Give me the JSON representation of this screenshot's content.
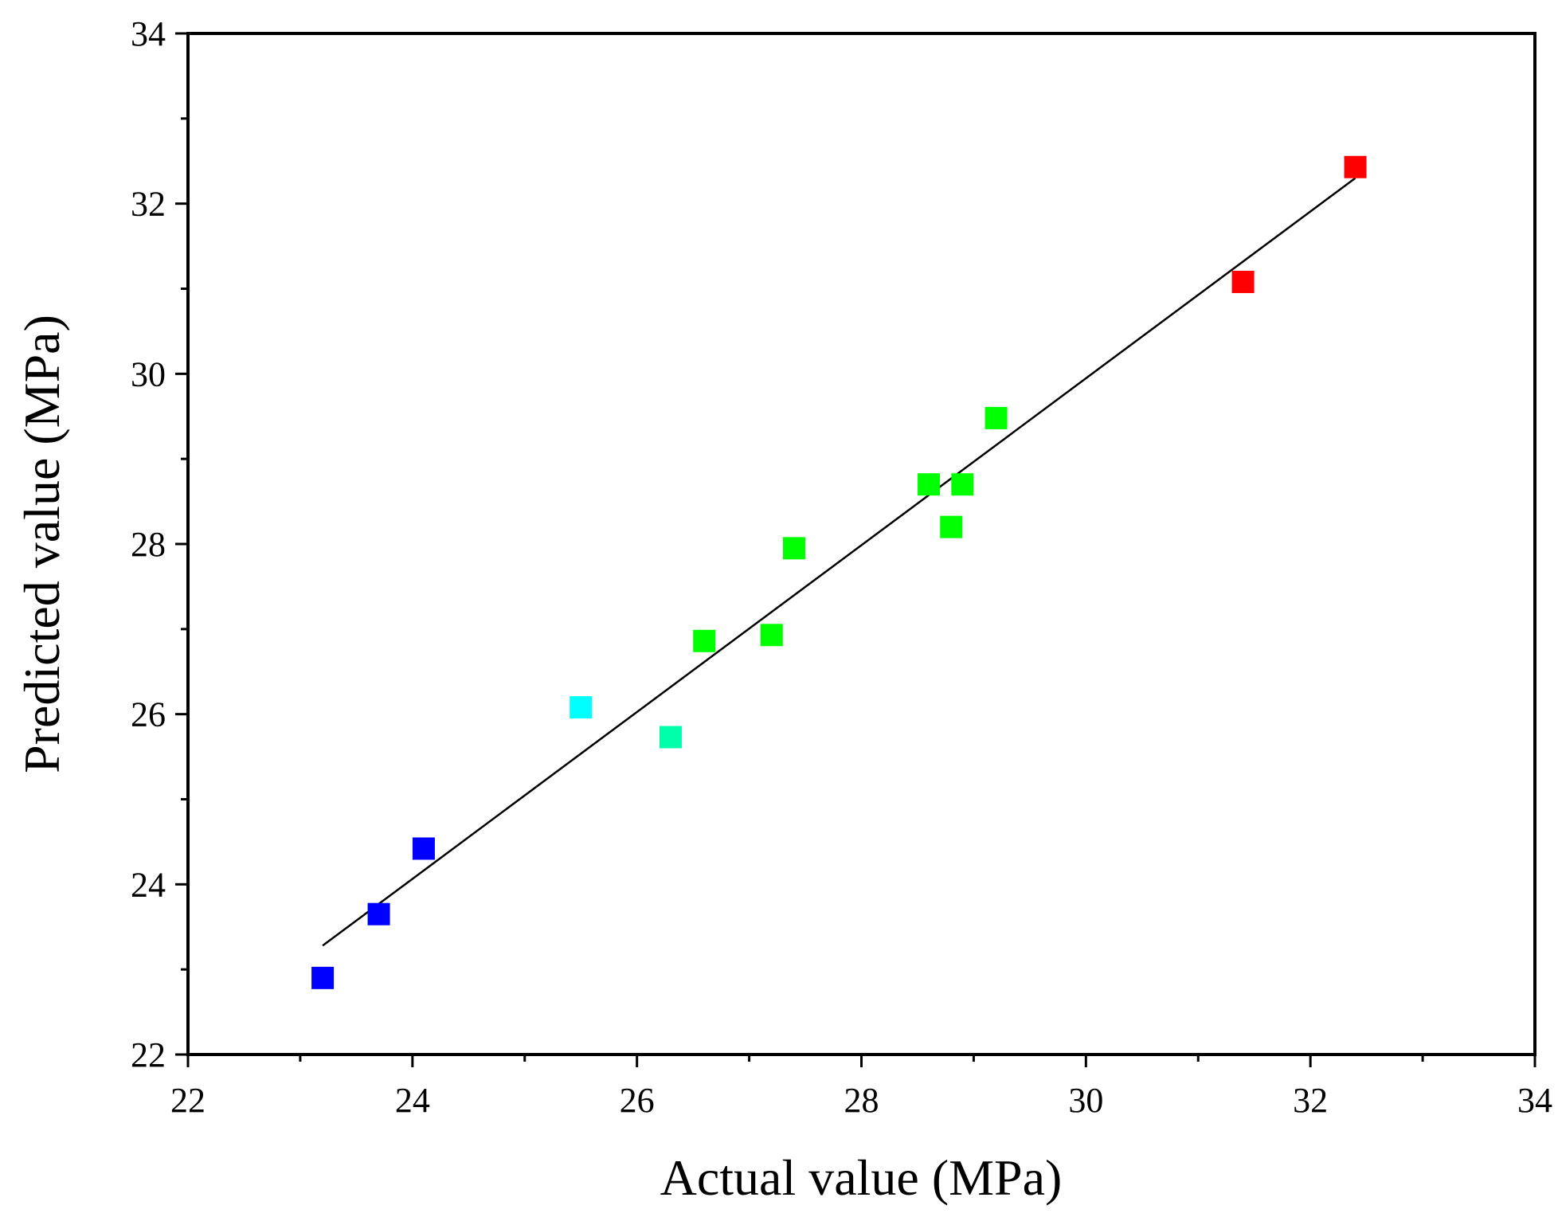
{
  "chart_data": {
    "type": "scatter",
    "title": "",
    "xlabel": "Actual value (MPa)",
    "ylabel": "Predicted value (MPa)",
    "xlim": [
      22,
      34
    ],
    "ylim": [
      22,
      34
    ],
    "xticks": [
      22,
      24,
      26,
      28,
      30,
      32,
      34
    ],
    "yticks": [
      22,
      24,
      26,
      28,
      30,
      32,
      34
    ],
    "xtick_labels": [
      "22",
      "24",
      "26",
      "28",
      "30",
      "32",
      "34"
    ],
    "ytick_labels": [
      "22",
      "24",
      "26",
      "28",
      "30",
      "32",
      "34"
    ],
    "minor_tick_step": 1,
    "grid": false,
    "points": [
      {
        "x": 23.2,
        "y": 22.9,
        "color": "#0000ff"
      },
      {
        "x": 23.7,
        "y": 23.65,
        "color": "#0000ff"
      },
      {
        "x": 24.1,
        "y": 24.42,
        "color": "#0000ff"
      },
      {
        "x": 25.5,
        "y": 26.08,
        "color": "#00ffff"
      },
      {
        "x": 26.3,
        "y": 25.73,
        "color": "#00ffaa"
      },
      {
        "x": 26.6,
        "y": 26.86,
        "color": "#00ff00"
      },
      {
        "x": 27.2,
        "y": 26.93,
        "color": "#00ff00"
      },
      {
        "x": 27.4,
        "y": 27.95,
        "color": "#00ff00"
      },
      {
        "x": 28.6,
        "y": 28.7,
        "color": "#00ff00"
      },
      {
        "x": 28.8,
        "y": 28.2,
        "color": "#00ff00"
      },
      {
        "x": 28.9,
        "y": 28.7,
        "color": "#00ff00"
      },
      {
        "x": 29.2,
        "y": 29.48,
        "color": "#00ff00"
      },
      {
        "x": 31.4,
        "y": 31.08,
        "color": "#ff0000"
      },
      {
        "x": 32.4,
        "y": 32.43,
        "color": "#ff0000"
      }
    ],
    "fit_line": {
      "x": [
        23.2,
        32.4
      ],
      "y": [
        23.28,
        32.3
      ],
      "color": "#000000"
    }
  }
}
